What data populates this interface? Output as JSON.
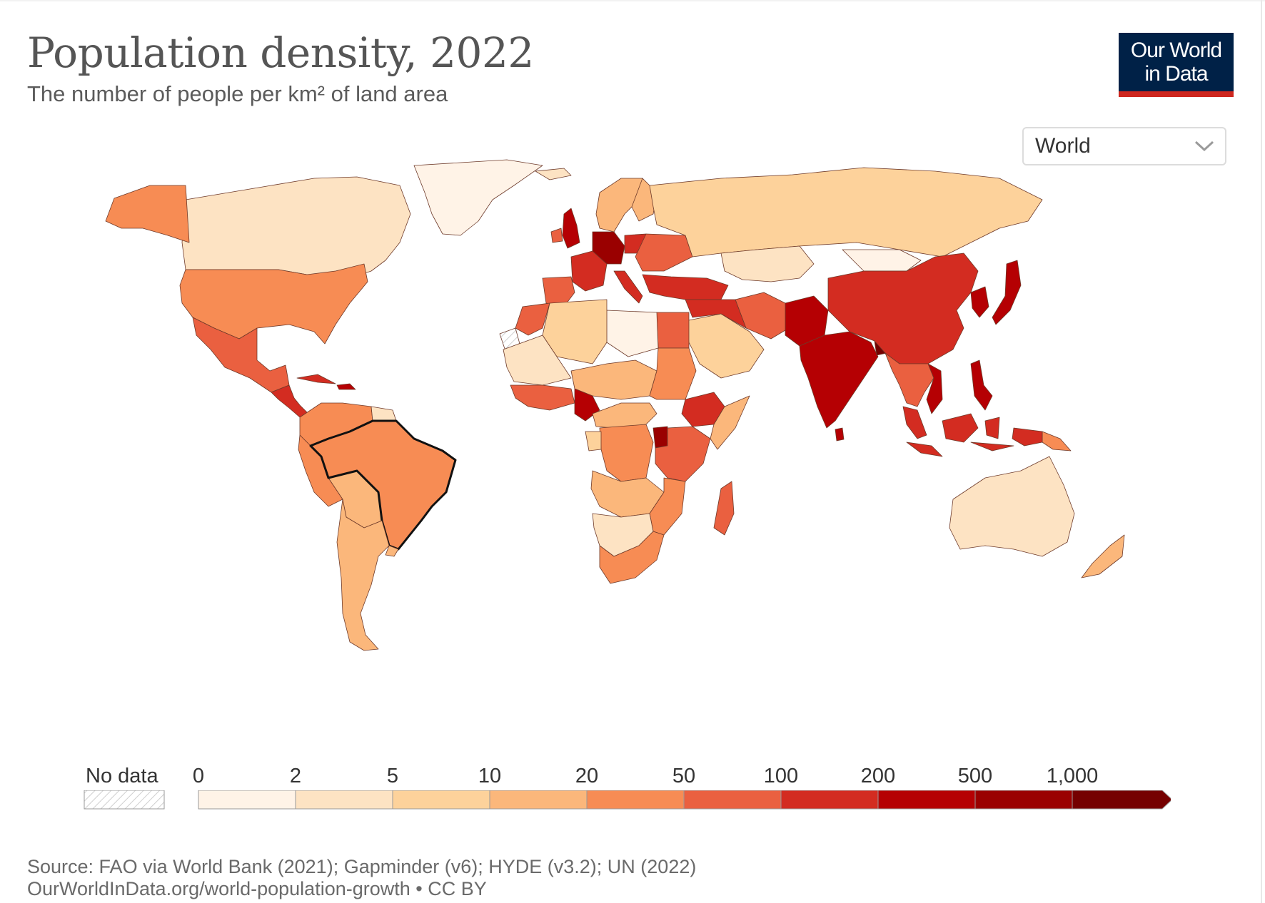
{
  "header": {
    "title": "Population density, 2022",
    "subtitle": "The number of people per km² of land area"
  },
  "logo": {
    "line1": "Our World",
    "line2": "in Data"
  },
  "region_selector": {
    "value": "World",
    "icon": "chevron-down-icon"
  },
  "legend": {
    "no_data_label": "No data",
    "thresholds": [
      "0",
      "2",
      "5",
      "10",
      "20",
      "50",
      "100",
      "200",
      "500",
      "1,000"
    ],
    "colors": [
      "#fff3e7",
      "#fde3c3",
      "#fdd29b",
      "#fbb77b",
      "#f78c54",
      "#ea6040",
      "#d32c21",
      "#b50003",
      "#9a0000",
      "#750000"
    ]
  },
  "footer": {
    "source": "Source: FAO via World Bank (2021); Gapminder (v6); HYDE (v3.2); UN (2022)",
    "url": "OurWorldInData.org/world-population-growth • CC BY"
  },
  "accent_colors": {
    "logo_bg": "#002147",
    "logo_bar": "#ce261e"
  }
}
